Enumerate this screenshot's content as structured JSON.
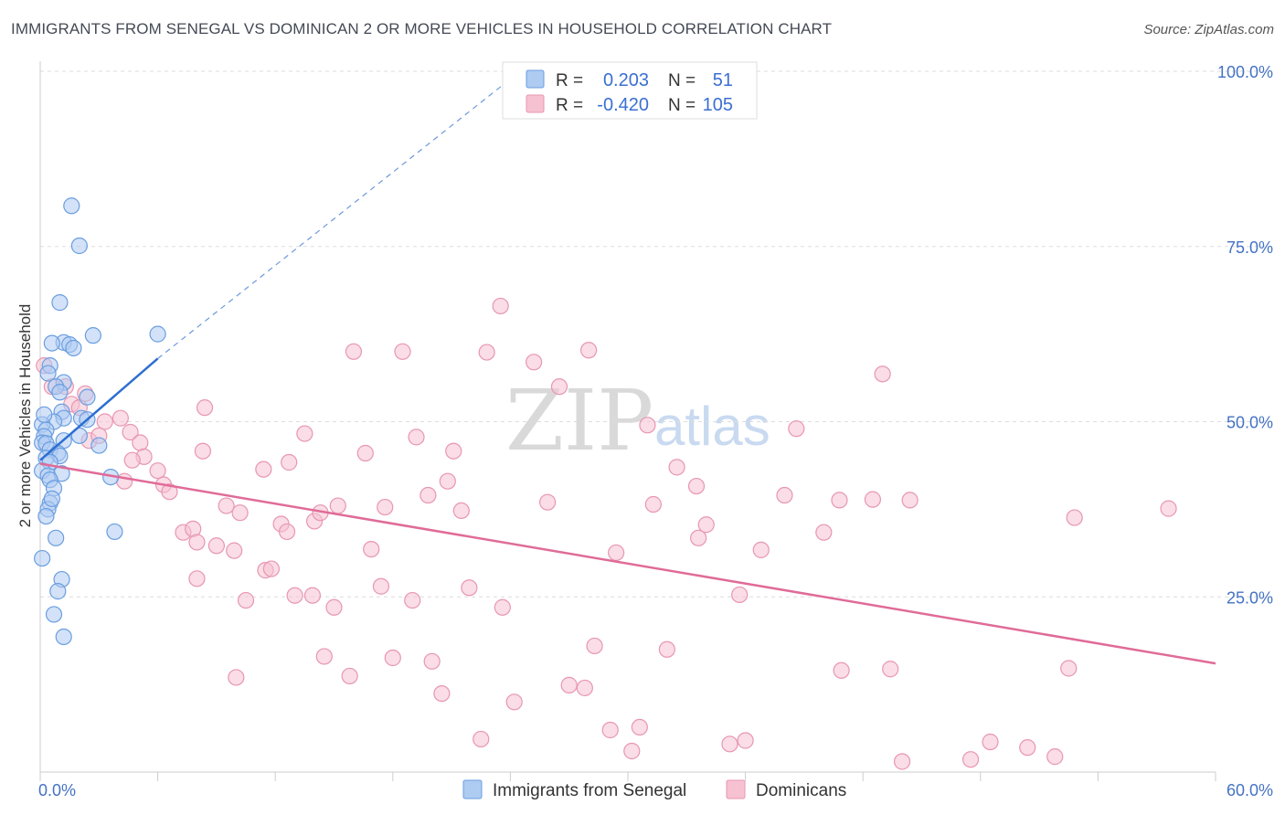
{
  "title": "IMMIGRANTS FROM SENEGAL VS DOMINICAN 2 OR MORE VEHICLES IN HOUSEHOLD CORRELATION CHART",
  "source": "Source: ZipAtlas.com",
  "watermark": {
    "zip": "ZIP",
    "atlas": "atlas"
  },
  "colors": {
    "senegal_fill": "#aecbf2",
    "senegal_stroke": "#6a9ee0",
    "senegal_line": "#2d6fd0",
    "dominican_fill": "#f6c1d1",
    "dominican_stroke": "#e896b1",
    "dominican_line": "#e06b98",
    "grid": "#dddddd",
    "tick_text": "#4472c4"
  },
  "legend": {
    "rows": [
      {
        "r_label": "R =",
        "r_value": "0.203",
        "n_label": "N =",
        "n_value": "51"
      },
      {
        "r_label": "R =",
        "r_value": "-0.420",
        "n_label": "N =",
        "n_value": "105"
      }
    ]
  },
  "chart_data": {
    "type": "scatter",
    "title": "IMMIGRANTS FROM SENEGAL VS DOMINICAN 2 OR MORE VEHICLES IN HOUSEHOLD CORRELATION CHART",
    "xlabel": "",
    "ylabel": "2 or more Vehicles in Household",
    "xlim": [
      0,
      60
    ],
    "ylim": [
      0,
      100
    ],
    "x_tick_labels": [
      "0.0%",
      "60.0%"
    ],
    "y_ticks": [
      25,
      50,
      75,
      100
    ],
    "y_tick_labels": [
      "25.0%",
      "50.0%",
      "75.0%",
      "100.0%"
    ],
    "grid": true,
    "series": [
      {
        "name": "Immigrants from Senegal",
        "r": 0.203,
        "n": 51,
        "trend": {
          "x": [
            0,
            6
          ],
          "y": [
            44.5,
            59.0
          ],
          "dashed_to": [
            24.5,
            100
          ]
        },
        "points": [
          [
            1.6,
            80.8
          ],
          [
            2.0,
            75.1
          ],
          [
            1.0,
            67.0
          ],
          [
            2.7,
            62.3
          ],
          [
            1.2,
            61.3
          ],
          [
            1.5,
            61.0
          ],
          [
            0.6,
            61.2
          ],
          [
            1.7,
            60.5
          ],
          [
            6.0,
            62.5
          ],
          [
            0.5,
            58.0
          ],
          [
            0.4,
            56.9
          ],
          [
            1.2,
            55.6
          ],
          [
            0.8,
            55.0
          ],
          [
            1.0,
            54.2
          ],
          [
            2.4,
            53.5
          ],
          [
            1.1,
            51.4
          ],
          [
            1.2,
            50.5
          ],
          [
            0.7,
            50.0
          ],
          [
            2.1,
            50.5
          ],
          [
            2.4,
            50.3
          ],
          [
            0.1,
            49.6
          ],
          [
            0.3,
            48.8
          ],
          [
            0.2,
            47.9
          ],
          [
            0.1,
            47.0
          ],
          [
            0.3,
            46.9
          ],
          [
            1.2,
            47.3
          ],
          [
            2.0,
            48.0
          ],
          [
            3.0,
            46.6
          ],
          [
            0.5,
            46.0
          ],
          [
            0.9,
            45.5
          ],
          [
            1.0,
            45.1
          ],
          [
            0.3,
            44.8
          ],
          [
            0.5,
            44.2
          ],
          [
            0.1,
            43.0
          ],
          [
            0.4,
            42.3
          ],
          [
            1.1,
            42.6
          ],
          [
            3.6,
            42.1
          ],
          [
            0.5,
            41.7
          ],
          [
            0.7,
            40.5
          ],
          [
            0.5,
            38.4
          ],
          [
            0.4,
            37.5
          ],
          [
            0.3,
            36.5
          ],
          [
            3.8,
            34.3
          ],
          [
            0.8,
            33.4
          ],
          [
            0.1,
            30.5
          ],
          [
            1.1,
            27.5
          ],
          [
            0.9,
            25.8
          ],
          [
            0.7,
            22.5
          ],
          [
            1.2,
            19.3
          ],
          [
            0.2,
            51.0
          ],
          [
            0.6,
            39.0
          ]
        ]
      },
      {
        "name": "Dominicans",
        "r": -0.42,
        "n": 105,
        "trend": {
          "x": [
            0,
            60
          ],
          "y": [
            44.0,
            15.5
          ]
        },
        "points": [
          [
            0.2,
            58.0
          ],
          [
            0.6,
            55.0
          ],
          [
            1.3,
            55.0
          ],
          [
            2.3,
            54.0
          ],
          [
            1.6,
            52.5
          ],
          [
            4.1,
            50.5
          ],
          [
            4.6,
            48.5
          ],
          [
            3.3,
            50.0
          ],
          [
            5.1,
            47.0
          ],
          [
            2.5,
            47.3
          ],
          [
            5.3,
            45.0
          ],
          [
            4.7,
            44.5
          ],
          [
            6.0,
            43.0
          ],
          [
            6.3,
            41.0
          ],
          [
            4.3,
            41.5
          ],
          [
            6.6,
            40.0
          ],
          [
            7.3,
            34.2
          ],
          [
            7.8,
            34.7
          ],
          [
            8.0,
            32.8
          ],
          [
            9.0,
            32.3
          ],
          [
            9.9,
            31.6
          ],
          [
            8.3,
            45.8
          ],
          [
            8.4,
            52.0
          ],
          [
            9.5,
            38.0
          ],
          [
            10.2,
            37.0
          ],
          [
            10.5,
            24.5
          ],
          [
            11.4,
            43.2
          ],
          [
            11.5,
            28.8
          ],
          [
            11.8,
            29.0
          ],
          [
            12.3,
            35.4
          ],
          [
            12.6,
            34.3
          ],
          [
            12.7,
            44.2
          ],
          [
            13.0,
            25.2
          ],
          [
            13.5,
            48.3
          ],
          [
            13.9,
            25.2
          ],
          [
            14.0,
            35.8
          ],
          [
            14.3,
            37.0
          ],
          [
            14.5,
            16.5
          ],
          [
            15.0,
            23.5
          ],
          [
            15.2,
            38.0
          ],
          [
            15.8,
            13.7
          ],
          [
            16.0,
            60.0
          ],
          [
            16.6,
            45.5
          ],
          [
            16.9,
            31.8
          ],
          [
            17.4,
            26.5
          ],
          [
            17.6,
            37.8
          ],
          [
            18.0,
            16.3
          ],
          [
            18.5,
            60.0
          ],
          [
            19.0,
            24.5
          ],
          [
            19.2,
            47.8
          ],
          [
            19.8,
            39.5
          ],
          [
            20.0,
            15.8
          ],
          [
            20.5,
            11.2
          ],
          [
            20.8,
            41.5
          ],
          [
            21.1,
            45.8
          ],
          [
            21.5,
            37.3
          ],
          [
            21.9,
            26.3
          ],
          [
            22.5,
            4.7
          ],
          [
            22.8,
            59.9
          ],
          [
            23.5,
            66.5
          ],
          [
            23.6,
            23.5
          ],
          [
            24.2,
            10.0
          ],
          [
            25.2,
            58.5
          ],
          [
            25.9,
            38.5
          ],
          [
            26.5,
            55.0
          ],
          [
            27.0,
            12.4
          ],
          [
            27.8,
            12.0
          ],
          [
            28.0,
            60.2
          ],
          [
            28.3,
            18.0
          ],
          [
            29.1,
            6.0
          ],
          [
            29.4,
            31.3
          ],
          [
            30.2,
            3.0
          ],
          [
            30.6,
            6.4
          ],
          [
            31.0,
            49.5
          ],
          [
            31.3,
            38.2
          ],
          [
            32.0,
            17.5
          ],
          [
            32.5,
            43.5
          ],
          [
            33.5,
            40.8
          ],
          [
            33.6,
            33.4
          ],
          [
            34.0,
            35.3
          ],
          [
            35.2,
            4.0
          ],
          [
            35.7,
            25.3
          ],
          [
            36.8,
            31.7
          ],
          [
            38.0,
            39.5
          ],
          [
            38.6,
            49.0
          ],
          [
            40.0,
            34.2
          ],
          [
            40.8,
            38.8
          ],
          [
            40.9,
            14.5
          ],
          [
            42.5,
            38.9
          ],
          [
            43.0,
            56.8
          ],
          [
            43.4,
            14.7
          ],
          [
            44.4,
            38.8
          ],
          [
            47.5,
            1.8
          ],
          [
            48.5,
            4.3
          ],
          [
            50.4,
            3.5
          ],
          [
            51.8,
            2.2
          ],
          [
            52.5,
            14.8
          ],
          [
            52.8,
            36.3
          ],
          [
            57.6,
            37.6
          ],
          [
            44.0,
            1.5
          ],
          [
            36.0,
            4.5
          ],
          [
            8.0,
            27.6
          ],
          [
            3.0,
            48.0
          ],
          [
            2.0,
            52.0
          ],
          [
            10.0,
            13.5
          ]
        ]
      }
    ]
  }
}
